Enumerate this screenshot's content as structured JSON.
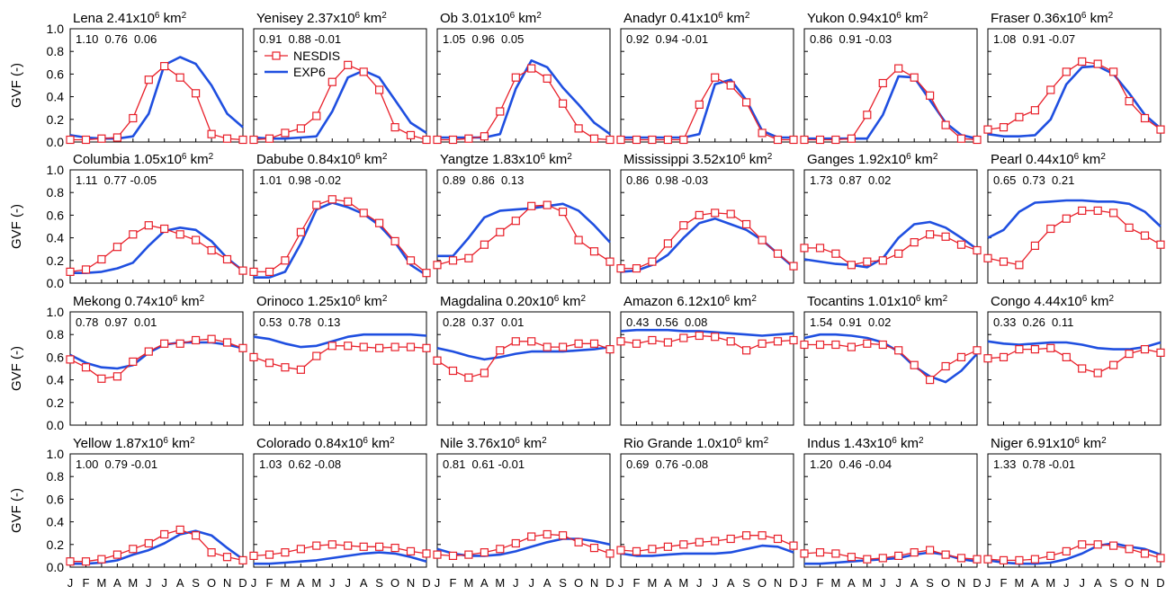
{
  "colors": {
    "nesdis": "#e8202a",
    "exp6": "#1f4fe0"
  },
  "legend": {
    "nesdis": "NESDIS",
    "exp6": "EXP6"
  },
  "ylabel": "GVF (-)",
  "months": [
    "J",
    "F",
    "M",
    "A",
    "M",
    "J",
    "J",
    "A",
    "S",
    "O",
    "N",
    "D"
  ],
  "yticks": [
    "0.0",
    "0.2",
    "0.4",
    "0.6",
    "0.8",
    "1.0"
  ],
  "chart_data": {
    "type": "line",
    "x": [
      "J",
      "F",
      "M",
      "A",
      "M",
      "J",
      "J",
      "A",
      "S",
      "O",
      "N",
      "D"
    ],
    "ylim": [
      0,
      1
    ],
    "series_names": [
      "NESDIS",
      "EXP6"
    ],
    "panels": [
      {
        "title": "Lena 2.41x10",
        "exp": "6",
        "unit": " km",
        "sq": "2",
        "stats": "1.10  0.76  0.06",
        "nesdis": [
          0.02,
          0.02,
          0.03,
          0.04,
          0.21,
          0.55,
          0.67,
          0.57,
          0.43,
          0.07,
          0.03,
          0.02
        ],
        "exp6": [
          0.06,
          0.04,
          0.03,
          0.03,
          0.05,
          0.25,
          0.68,
          0.75,
          0.69,
          0.5,
          0.25,
          0.13
        ]
      },
      {
        "title": "Yenisey 2.37x10",
        "exp": "6",
        "unit": " km",
        "sq": "2",
        "stats": "0.91  0.88 -0.01",
        "nesdis": [
          0.02,
          0.03,
          0.08,
          0.12,
          0.23,
          0.53,
          0.68,
          0.62,
          0.46,
          0.13,
          0.06,
          0.02
        ],
        "exp6": [
          0.04,
          0.03,
          0.03,
          0.04,
          0.05,
          0.27,
          0.57,
          0.63,
          0.57,
          0.37,
          0.17,
          0.08
        ]
      },
      {
        "title": "Ob 3.01x10",
        "exp": "6",
        "unit": " km",
        "sq": "2",
        "stats": "1.05  0.96  0.05",
        "nesdis": [
          0.02,
          0.02,
          0.03,
          0.05,
          0.27,
          0.57,
          0.65,
          0.56,
          0.34,
          0.12,
          0.03,
          0.02
        ],
        "exp6": [
          0.04,
          0.04,
          0.04,
          0.04,
          0.07,
          0.47,
          0.72,
          0.66,
          0.48,
          0.33,
          0.17,
          0.07
        ]
      },
      {
        "title": "Anadyr 0.41x10",
        "exp": "6",
        "unit": " km",
        "sq": "2",
        "stats": "0.92  0.94 -0.01",
        "nesdis": [
          0.02,
          0.02,
          0.02,
          0.02,
          0.02,
          0.33,
          0.57,
          0.5,
          0.35,
          0.08,
          0.02,
          0.02
        ],
        "exp6": [
          0.04,
          0.04,
          0.04,
          0.04,
          0.04,
          0.07,
          0.51,
          0.55,
          0.37,
          0.1,
          0.04,
          0.04
        ]
      },
      {
        "title": "Yukon 0.94x10",
        "exp": "6",
        "unit": " km",
        "sq": "2",
        "stats": "0.86  0.91 -0.03",
        "nesdis": [
          0.02,
          0.02,
          0.02,
          0.03,
          0.24,
          0.52,
          0.65,
          0.57,
          0.41,
          0.15,
          0.03,
          0.02
        ],
        "exp6": [
          0.03,
          0.03,
          0.03,
          0.03,
          0.03,
          0.24,
          0.58,
          0.57,
          0.37,
          0.17,
          0.06,
          0.03
        ]
      },
      {
        "title": "Fraser 0.36x10",
        "exp": "6",
        "unit": " km",
        "sq": "2",
        "stats": "1.08  0.91 -0.07",
        "nesdis": [
          0.11,
          0.13,
          0.22,
          0.28,
          0.46,
          0.62,
          0.71,
          0.69,
          0.62,
          0.36,
          0.21,
          0.11
        ],
        "exp6": [
          0.07,
          0.05,
          0.05,
          0.06,
          0.2,
          0.51,
          0.66,
          0.67,
          0.6,
          0.43,
          0.24,
          0.12
        ]
      },
      {
        "title": "Columbia 1.05x10",
        "exp": "6",
        "unit": " km",
        "sq": "2",
        "stats": "1.11  0.77 -0.05",
        "nesdis": [
          0.1,
          0.12,
          0.21,
          0.32,
          0.43,
          0.51,
          0.48,
          0.43,
          0.38,
          0.29,
          0.21,
          0.11
        ],
        "exp6": [
          0.09,
          0.09,
          0.1,
          0.13,
          0.18,
          0.33,
          0.46,
          0.49,
          0.47,
          0.37,
          0.22,
          0.11
        ]
      },
      {
        "title": "Dabube 0.84x10",
        "exp": "6",
        "unit": " km",
        "sq": "2",
        "stats": "1.01  0.98 -0.02",
        "nesdis": [
          0.1,
          0.1,
          0.2,
          0.45,
          0.69,
          0.74,
          0.72,
          0.62,
          0.53,
          0.37,
          0.2,
          0.09
        ],
        "exp6": [
          0.05,
          0.05,
          0.1,
          0.35,
          0.65,
          0.71,
          0.67,
          0.61,
          0.51,
          0.36,
          0.16,
          0.07
        ]
      },
      {
        "title": "Yangtze 1.83x10",
        "exp": "6",
        "unit": " km",
        "sq": "2",
        "stats": "0.89  0.86  0.13",
        "nesdis": [
          0.16,
          0.2,
          0.22,
          0.34,
          0.45,
          0.55,
          0.68,
          0.69,
          0.63,
          0.38,
          0.28,
          0.19
        ],
        "exp6": [
          0.24,
          0.24,
          0.4,
          0.58,
          0.64,
          0.65,
          0.66,
          0.68,
          0.7,
          0.64,
          0.51,
          0.36
        ]
      },
      {
        "title": "Mississippi 3.52x10",
        "exp": "6",
        "unit": " km",
        "sq": "2",
        "stats": "0.86  0.98 -0.03",
        "nesdis": [
          0.13,
          0.13,
          0.19,
          0.35,
          0.51,
          0.6,
          0.62,
          0.61,
          0.52,
          0.38,
          0.26,
          0.15
        ],
        "exp6": [
          0.1,
          0.11,
          0.16,
          0.25,
          0.4,
          0.53,
          0.57,
          0.52,
          0.47,
          0.38,
          0.26,
          0.14
        ]
      },
      {
        "title": "Ganges 1.92x10",
        "exp": "6",
        "unit": " km",
        "sq": "2",
        "stats": "1.73  0.87  0.02",
        "nesdis": [
          0.31,
          0.31,
          0.26,
          0.16,
          0.19,
          0.2,
          0.26,
          0.36,
          0.43,
          0.41,
          0.34,
          0.29
        ],
        "exp6": [
          0.21,
          0.19,
          0.17,
          0.16,
          0.14,
          0.22,
          0.4,
          0.52,
          0.54,
          0.49,
          0.4,
          0.3
        ]
      },
      {
        "title": "Pearl 0.44x10",
        "exp": "6",
        "unit": " km",
        "sq": "2",
        "stats": "0.65  0.73  0.21",
        "nesdis": [
          0.22,
          0.19,
          0.16,
          0.33,
          0.48,
          0.57,
          0.64,
          0.64,
          0.62,
          0.49,
          0.42,
          0.34
        ],
        "exp6": [
          0.4,
          0.47,
          0.63,
          0.71,
          0.72,
          0.73,
          0.73,
          0.72,
          0.72,
          0.7,
          0.63,
          0.5
        ]
      },
      {
        "title": "Mekong 0.74x10",
        "exp": "6",
        "unit": " km",
        "sq": "2",
        "stats": "0.78  0.97  0.01",
        "nesdis": [
          0.58,
          0.51,
          0.41,
          0.43,
          0.56,
          0.65,
          0.72,
          0.72,
          0.75,
          0.76,
          0.73,
          0.68
        ],
        "exp6": [
          0.62,
          0.55,
          0.51,
          0.5,
          0.53,
          0.64,
          0.71,
          0.73,
          0.73,
          0.73,
          0.71,
          0.68
        ]
      },
      {
        "title": "Orinoco 1.25x10",
        "exp": "6",
        "unit": " km",
        "sq": "2",
        "stats": "0.53  0.78  0.13",
        "nesdis": [
          0.6,
          0.55,
          0.51,
          0.49,
          0.61,
          0.7,
          0.7,
          0.69,
          0.68,
          0.69,
          0.69,
          0.68
        ],
        "exp6": [
          0.78,
          0.76,
          0.72,
          0.69,
          0.7,
          0.74,
          0.78,
          0.8,
          0.8,
          0.8,
          0.8,
          0.79
        ]
      },
      {
        "title": "Magdalina 0.20x10",
        "exp": "6",
        "unit": " km",
        "sq": "2",
        "stats": "0.28  0.37  0.01",
        "nesdis": [
          0.57,
          0.48,
          0.42,
          0.46,
          0.66,
          0.74,
          0.74,
          0.69,
          0.69,
          0.72,
          0.72,
          0.67
        ],
        "exp6": [
          0.68,
          0.65,
          0.61,
          0.58,
          0.6,
          0.63,
          0.65,
          0.65,
          0.65,
          0.66,
          0.67,
          0.69
        ]
      },
      {
        "title": "Amazon 6.12x10",
        "exp": "6",
        "unit": " km",
        "sq": "2",
        "stats": "0.43  0.56  0.08",
        "nesdis": [
          0.74,
          0.72,
          0.75,
          0.73,
          0.77,
          0.79,
          0.78,
          0.74,
          0.66,
          0.72,
          0.74,
          0.75
        ],
        "exp6": [
          0.83,
          0.84,
          0.84,
          0.84,
          0.83,
          0.83,
          0.82,
          0.81,
          0.8,
          0.79,
          0.8,
          0.81
        ]
      },
      {
        "title": "Tocantins 1.01x10",
        "exp": "6",
        "unit": " km",
        "sq": "2",
        "stats": "1.54  0.91  0.02",
        "nesdis": [
          0.71,
          0.71,
          0.71,
          0.69,
          0.72,
          0.71,
          0.66,
          0.53,
          0.4,
          0.52,
          0.6,
          0.66
        ],
        "exp6": [
          0.77,
          0.8,
          0.8,
          0.79,
          0.77,
          0.73,
          0.65,
          0.52,
          0.43,
          0.38,
          0.48,
          0.63
        ]
      },
      {
        "title": "Congo 4.44x10",
        "exp": "6",
        "unit": " km",
        "sq": "2",
        "stats": "0.33  0.26  0.11",
        "nesdis": [
          0.59,
          0.6,
          0.67,
          0.67,
          0.68,
          0.6,
          0.5,
          0.46,
          0.53,
          0.63,
          0.67,
          0.64
        ],
        "exp6": [
          0.74,
          0.72,
          0.71,
          0.72,
          0.73,
          0.73,
          0.71,
          0.68,
          0.67,
          0.67,
          0.69,
          0.73
        ]
      },
      {
        "title": "Yellow 1.87x10",
        "exp": "6",
        "unit": " km",
        "sq": "2",
        "stats": "1.00  0.79 -0.01",
        "nesdis": [
          0.05,
          0.05,
          0.07,
          0.11,
          0.16,
          0.21,
          0.29,
          0.33,
          0.28,
          0.13,
          0.09,
          0.06
        ],
        "exp6": [
          0.03,
          0.03,
          0.04,
          0.06,
          0.11,
          0.15,
          0.21,
          0.29,
          0.32,
          0.28,
          0.17,
          0.07
        ]
      },
      {
        "title": "Colorado 0.84x10",
        "exp": "6",
        "unit": " km",
        "sq": "2",
        "stats": "1.03  0.62 -0.08",
        "nesdis": [
          0.1,
          0.11,
          0.13,
          0.16,
          0.19,
          0.2,
          0.19,
          0.18,
          0.18,
          0.17,
          0.14,
          0.12
        ],
        "exp6": [
          0.03,
          0.03,
          0.04,
          0.05,
          0.06,
          0.08,
          0.1,
          0.12,
          0.13,
          0.12,
          0.09,
          0.05
        ]
      },
      {
        "title": "Nile 3.76x10",
        "exp": "6",
        "unit": " km",
        "sq": "2",
        "stats": "0.81  0.61 -0.01",
        "nesdis": [
          0.11,
          0.1,
          0.11,
          0.13,
          0.16,
          0.21,
          0.27,
          0.29,
          0.28,
          0.22,
          0.17,
          0.12
        ],
        "exp6": [
          0.16,
          0.12,
          0.1,
          0.1,
          0.11,
          0.14,
          0.18,
          0.22,
          0.25,
          0.25,
          0.23,
          0.2
        ]
      },
      {
        "title": "Rio Grande  1.0x10",
        "exp": "6",
        "unit": " km",
        "sq": "2",
        "stats": "0.69  0.76 -0.08",
        "nesdis": [
          0.15,
          0.14,
          0.16,
          0.18,
          0.2,
          0.22,
          0.23,
          0.25,
          0.28,
          0.28,
          0.25,
          0.19
        ],
        "exp6": [
          0.12,
          0.1,
          0.1,
          0.11,
          0.12,
          0.12,
          0.12,
          0.13,
          0.16,
          0.19,
          0.18,
          0.13
        ]
      },
      {
        "title": "Indus 1.43x10",
        "exp": "6",
        "unit": " km",
        "sq": "2",
        "stats": "1.20  0.46 -0.04",
        "nesdis": [
          0.12,
          0.13,
          0.12,
          0.09,
          0.07,
          0.08,
          0.1,
          0.13,
          0.15,
          0.11,
          0.08,
          0.07
        ],
        "exp6": [
          0.03,
          0.03,
          0.04,
          0.05,
          0.06,
          0.07,
          0.08,
          0.11,
          0.13,
          0.11,
          0.07,
          0.05
        ]
      },
      {
        "title": "Niger 6.91x10",
        "exp": "6",
        "unit": " km",
        "sq": "2",
        "stats": "1.33  0.78 -0.01",
        "nesdis": [
          0.07,
          0.06,
          0.06,
          0.07,
          0.1,
          0.14,
          0.2,
          0.2,
          0.19,
          0.16,
          0.12,
          0.08
        ],
        "exp6": [
          0.06,
          0.04,
          0.03,
          0.03,
          0.04,
          0.07,
          0.12,
          0.19,
          0.21,
          0.18,
          0.16,
          0.11
        ]
      }
    ]
  }
}
